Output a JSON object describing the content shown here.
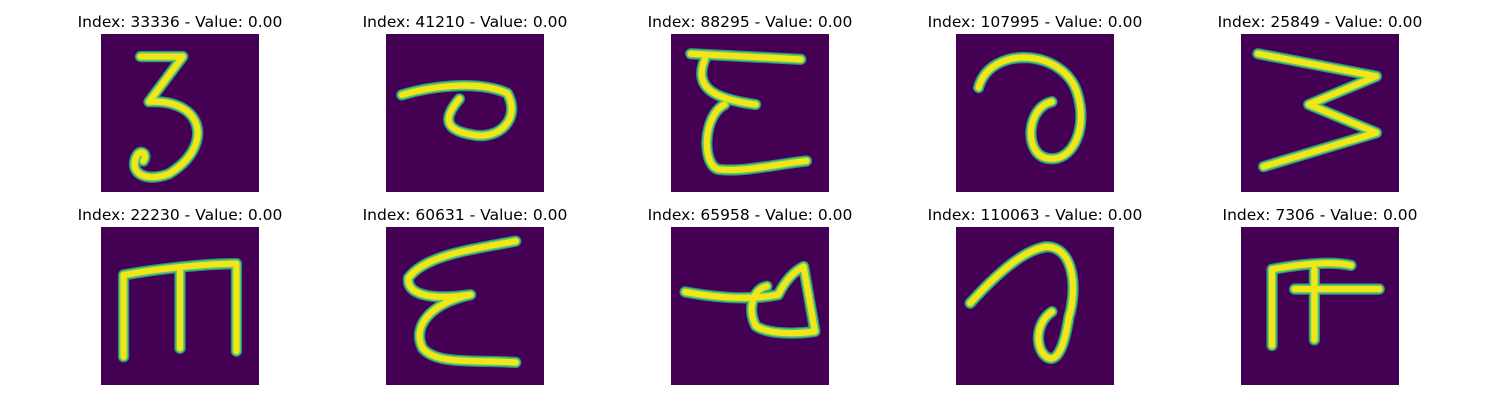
{
  "panels": [
    {
      "title": "Index: 33336 - Value: 0.00"
    },
    {
      "title": "Index: 41210 - Value: 0.00"
    },
    {
      "title": "Index: 88295 - Value: 0.00"
    },
    {
      "title": "Index: 107995 - Value: 0.00"
    },
    {
      "title": "Index: 25849 - Value: 0.00"
    },
    {
      "title": "Index: 22230 - Value: 0.00"
    },
    {
      "title": "Index: 60631 - Value: 0.00"
    },
    {
      "title": "Index: 65958 - Value: 0.00"
    },
    {
      "title": "Index: 110063 - Value: 0.00"
    },
    {
      "title": "Index: 7306 - Value: 0.00"
    }
  ],
  "colors": {
    "background": "#440154",
    "stroke_core": "#f0e61a",
    "stroke_edge": "#2a8c8a"
  }
}
